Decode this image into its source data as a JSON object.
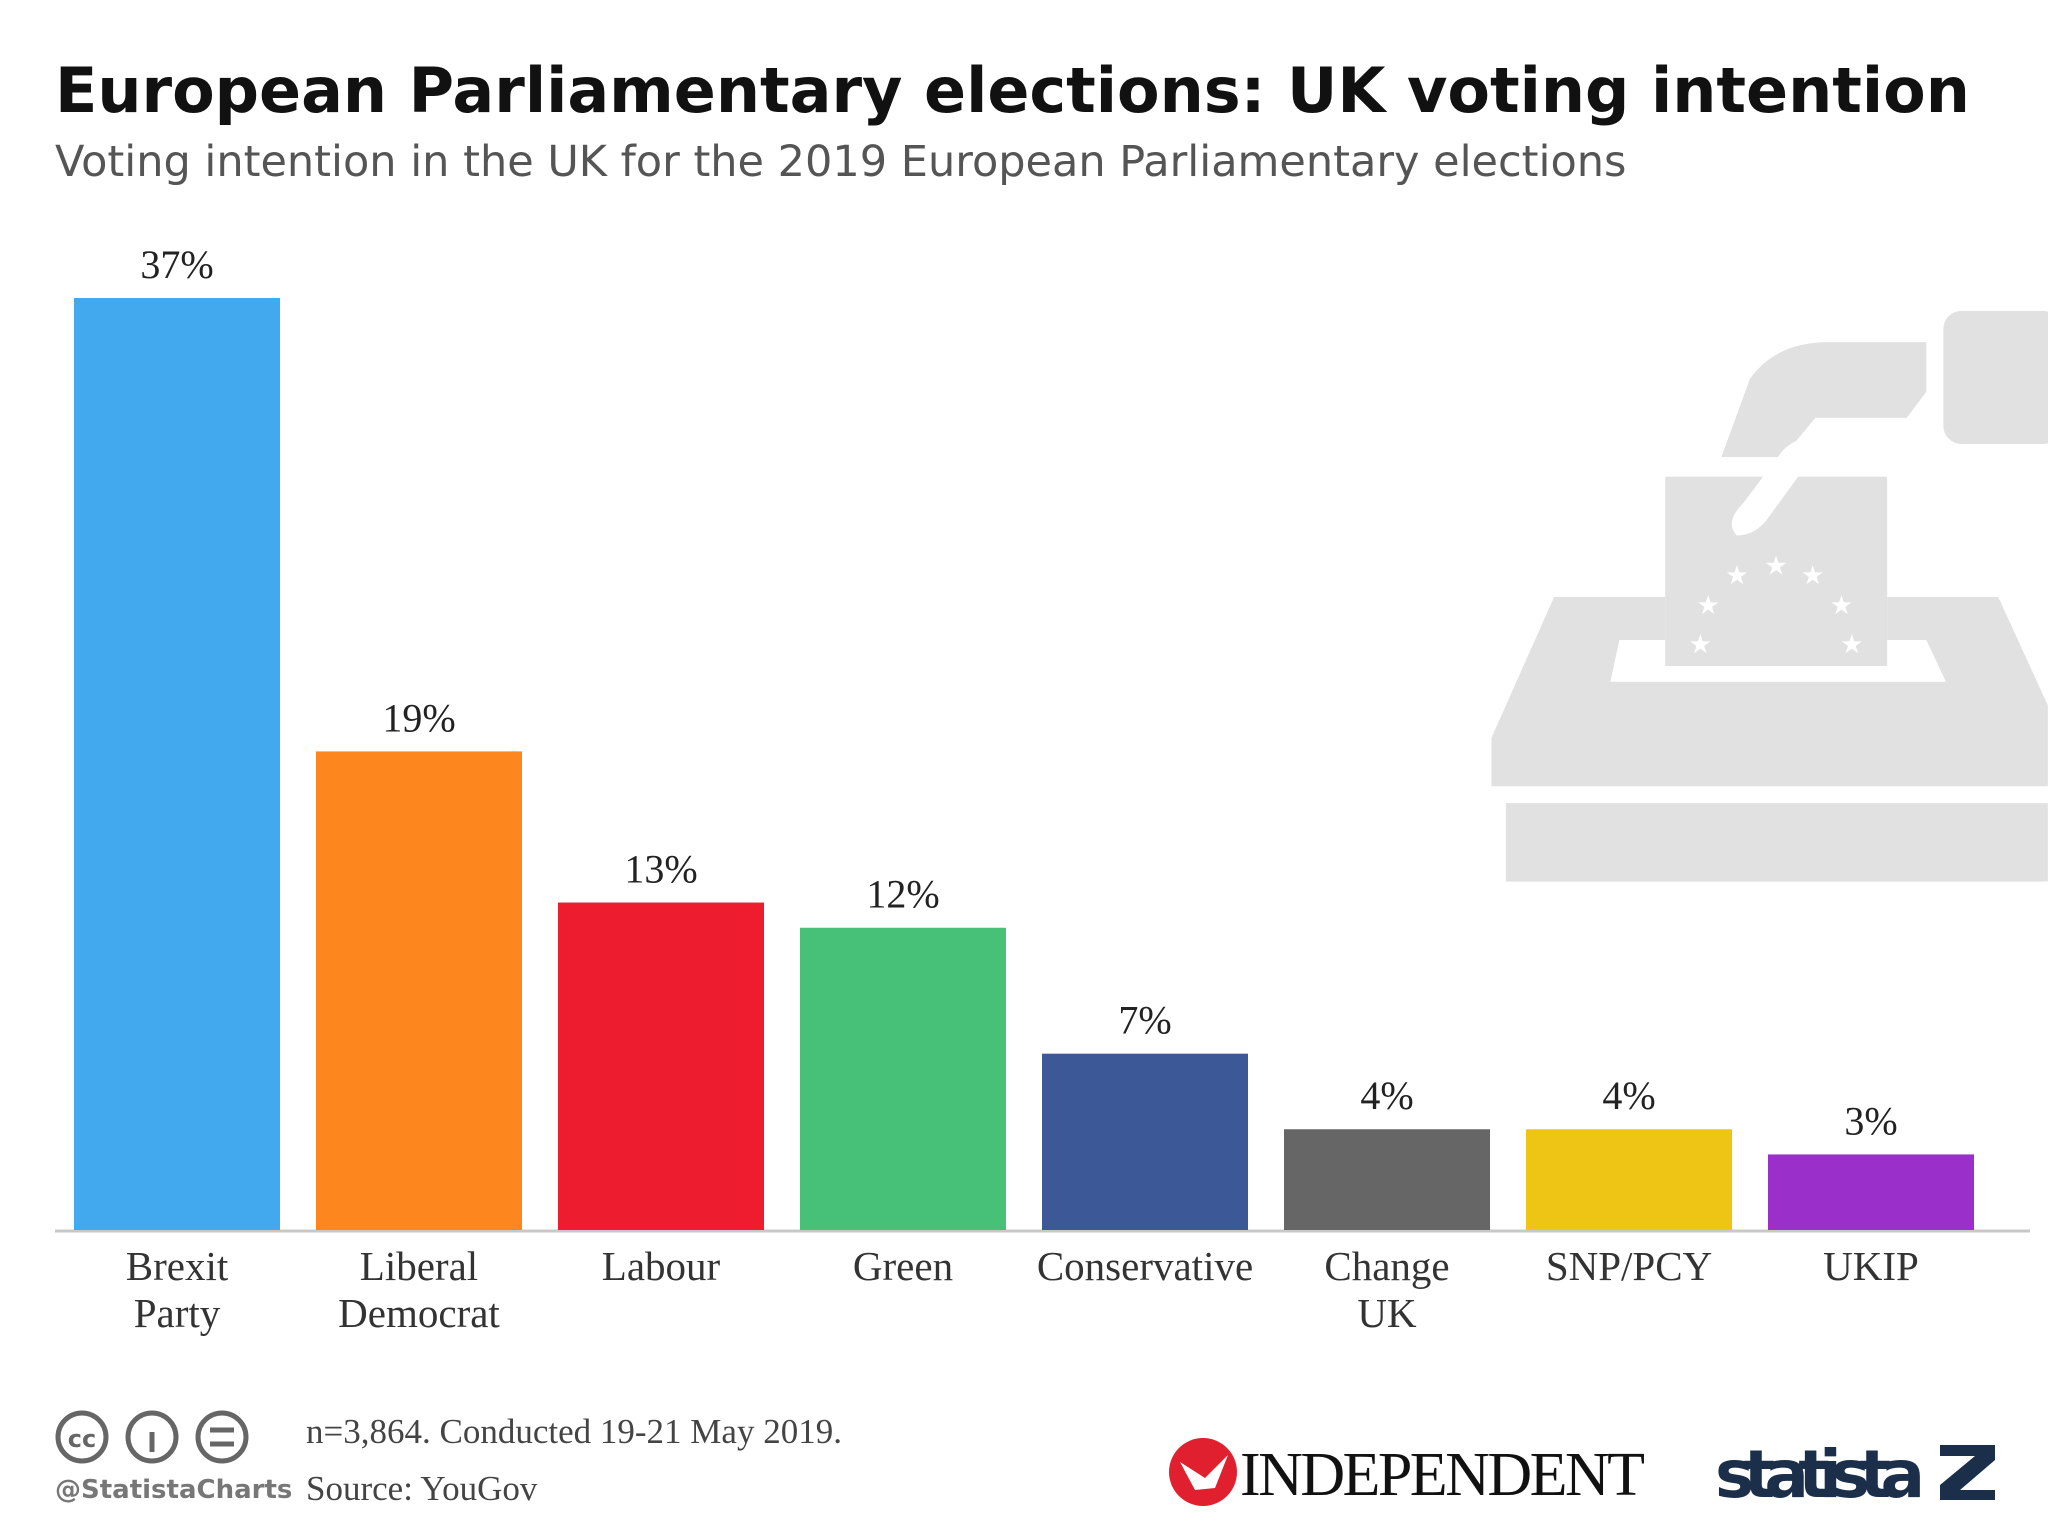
{
  "chart_data": {
    "type": "bar",
    "title": "European Parliamentary elections: UK voting intention",
    "subtitle": "Voting intention in the UK for the 2019 European Parliamentary elections",
    "categories": [
      [
        "Brexit",
        "Party"
      ],
      [
        "Liberal",
        "Democrat"
      ],
      [
        "Labour"
      ],
      [
        "Green"
      ],
      [
        "Conservative"
      ],
      [
        "Change",
        "UK"
      ],
      [
        "SNP/PCY"
      ],
      [
        "UKIP"
      ]
    ],
    "values": [
      37,
      19,
      13,
      12,
      7,
      4,
      4,
      3
    ],
    "value_labels": [
      "37%",
      "19%",
      "13%",
      "12%",
      "7%",
      "4%",
      "4%",
      "3%"
    ],
    "colors": [
      "#42a9ee",
      "#fd861e",
      "#ed1c2e",
      "#47c177",
      "#3c5897",
      "#666666",
      "#efc515",
      "#9a2fc9"
    ],
    "note": "n=3,864. Conducted 19-21 May 2019.",
    "source": "Source: YouGov",
    "handle": "@StatistaCharts",
    "logos": [
      "INDEPENDENT",
      "statista"
    ]
  }
}
